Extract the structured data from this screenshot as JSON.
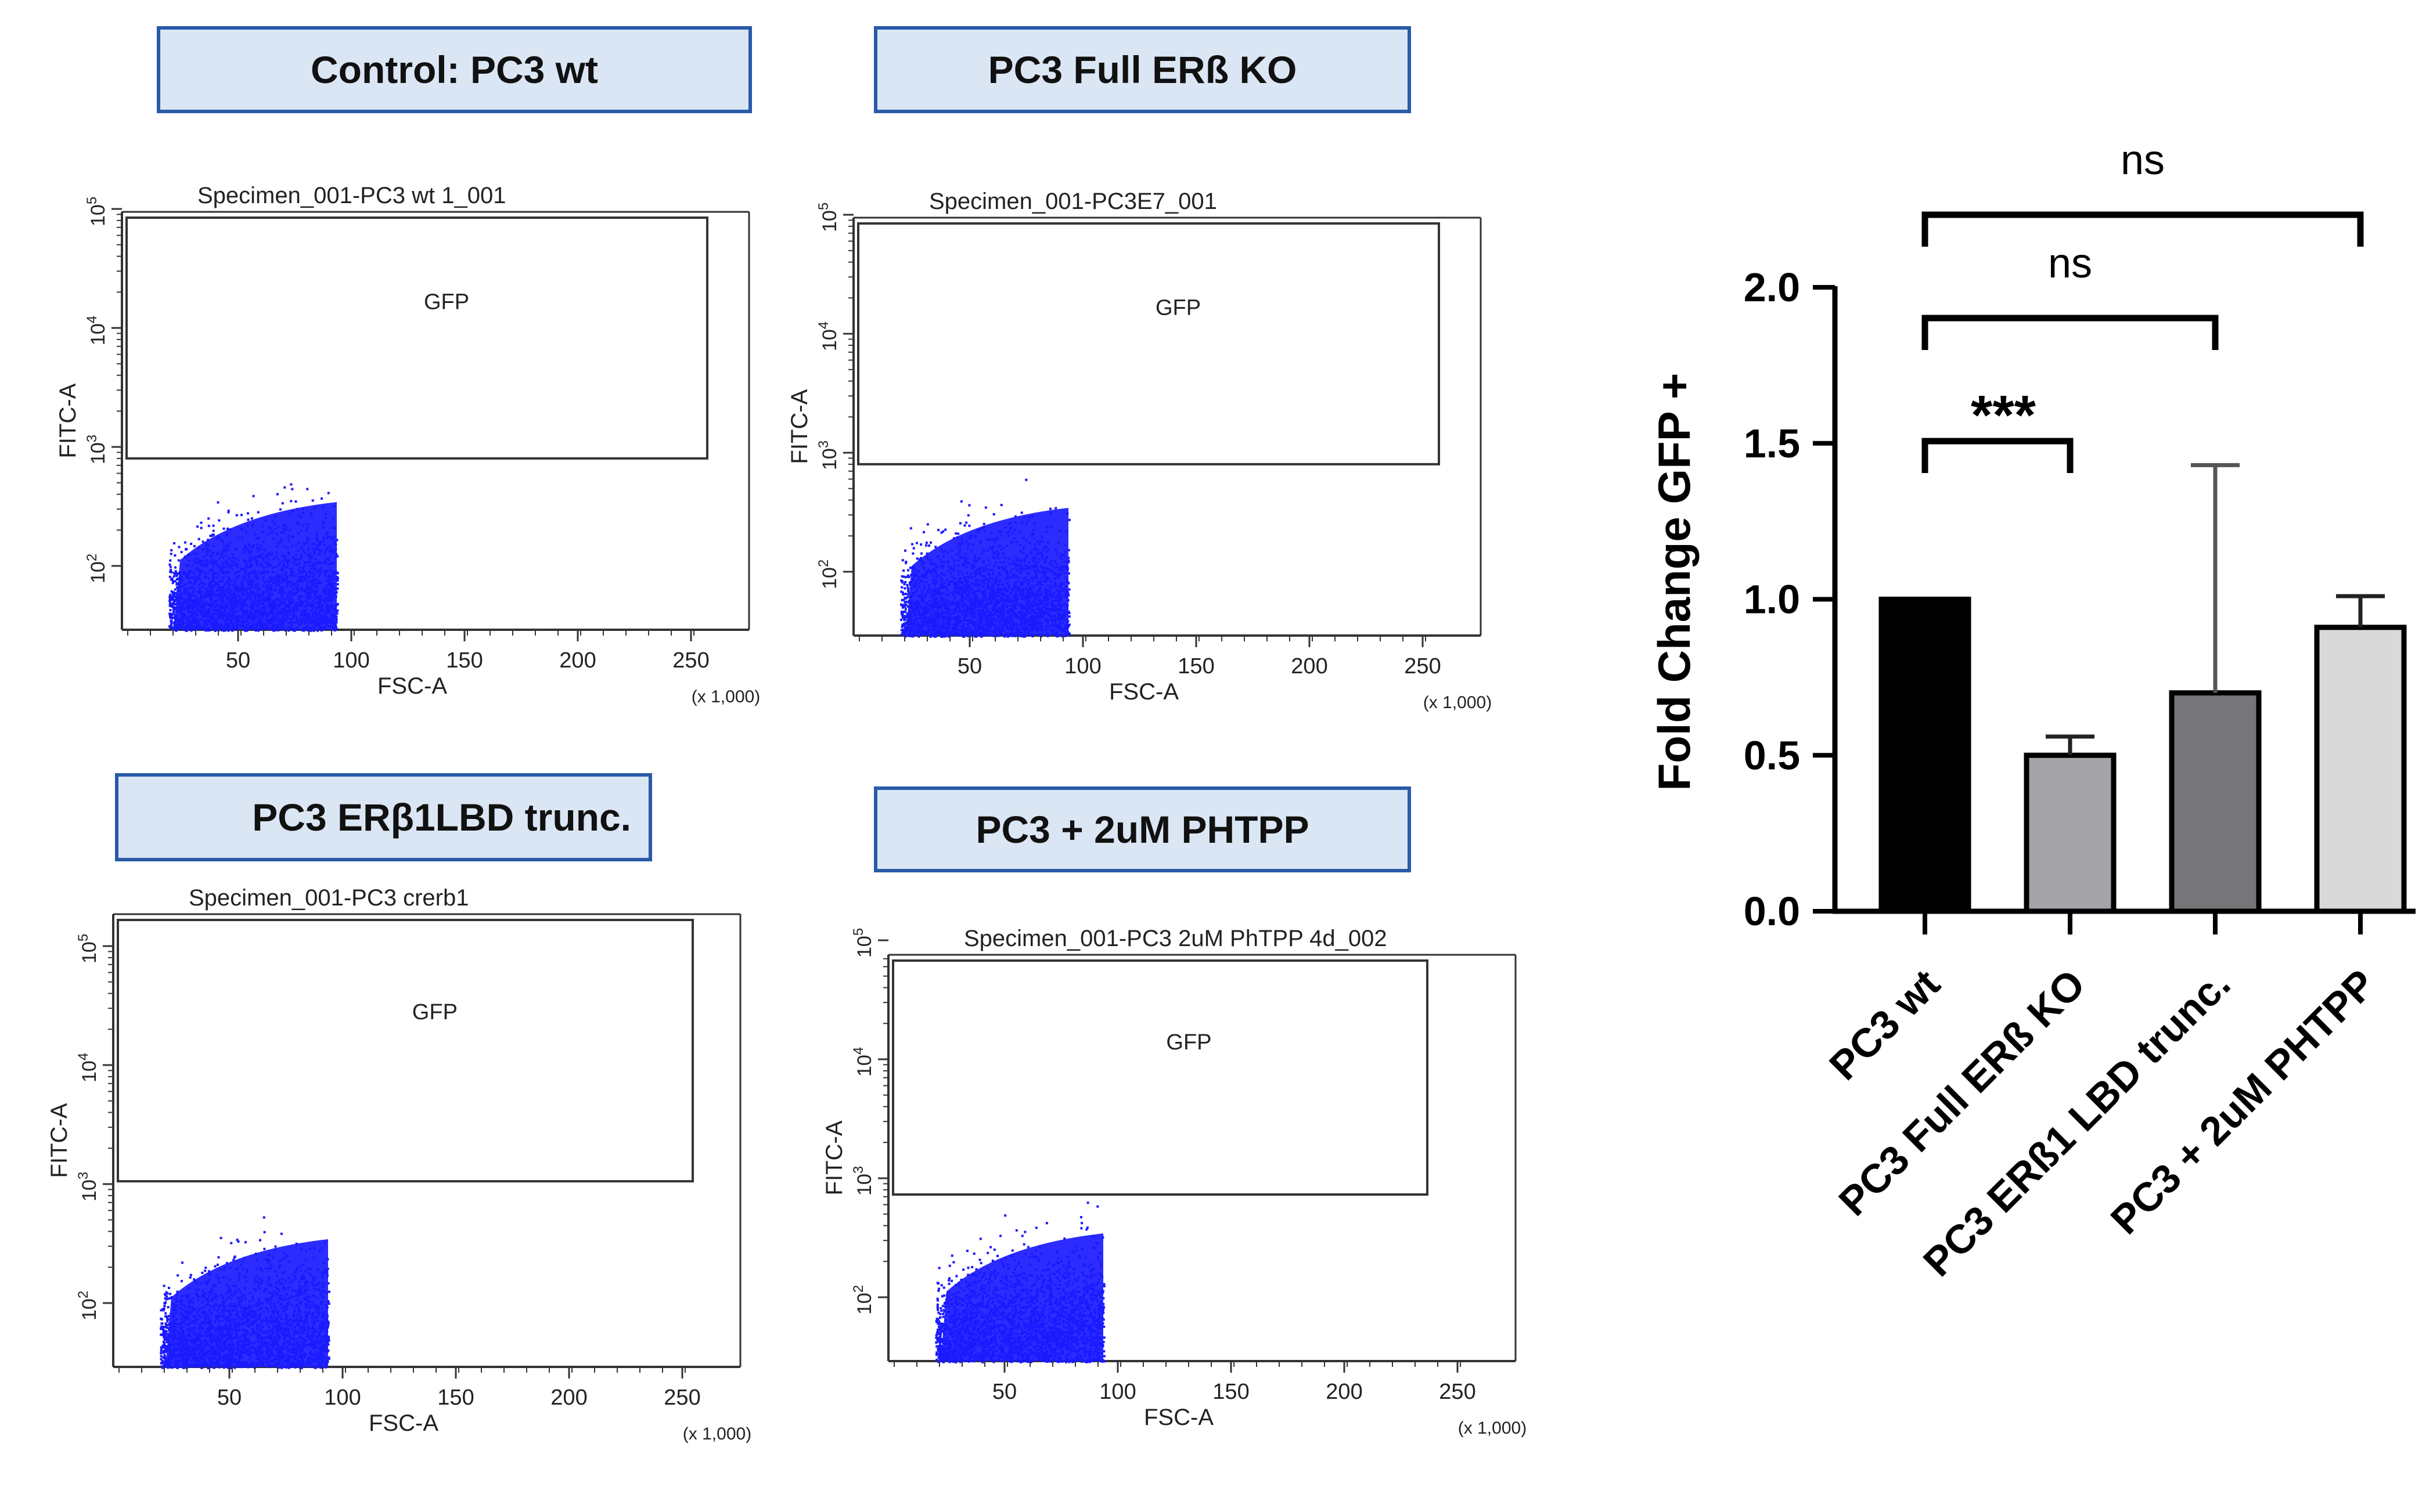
{
  "banners": {
    "wt": "Control:  PC3 wt",
    "ko": "PC3 Full ERß KO",
    "lbd": "PC3 ERβ1LBD trunc.",
    "phtpp": "PC3 + 2uM PHTPP"
  },
  "flow_plots": [
    {
      "id": "wt",
      "title": "Specimen_001-PC3 wt 1_001"
    },
    {
      "id": "ko",
      "title": "Specimen_001-PC3E7_001"
    },
    {
      "id": "lbd",
      "title": "Specimen_001-PC3 crerb1"
    },
    {
      "id": "phtpp",
      "title": "Specimen_001-PC3 2uM PhTPP 4d_002"
    }
  ],
  "flow_common": {
    "gate_label": "GFP",
    "xlabel": "FSC-A",
    "ylabel": "FITC-A",
    "x_ticks": [
      "50",
      "100",
      "150",
      "200",
      "250"
    ],
    "x_multiplier": "(x 1,000)",
    "y_ticks": [
      "10",
      "10",
      "10",
      "10"
    ],
    "y_exponents": [
      "2",
      "3",
      "4",
      "5"
    ],
    "dot_color": "#1a1aff"
  },
  "chart_data": {
    "type": "bar",
    "title": "",
    "xlabel": "",
    "ylabel": "Fold Change GFP  +",
    "categories": [
      "PC3 wt",
      "PC3 Full ERß KO",
      "PC3 ERß1 LBD trunc.",
      "PC3 + 2uM PHTPP"
    ],
    "values": [
      1.0,
      0.5,
      0.7,
      0.91
    ],
    "errors": [
      0.0,
      0.06,
      0.73,
      0.1
    ],
    "bar_colors": [
      "#000000",
      "#a3a3a8",
      "#767678",
      "#d9d9d9"
    ],
    "ylim": [
      0,
      2.0
    ],
    "yticks": [
      "0.0",
      "0.5",
      "1.0",
      "1.5",
      "2.0"
    ],
    "significance": [
      {
        "from": 0,
        "to": 1,
        "label": "***"
      },
      {
        "from": 0,
        "to": 2,
        "label": "ns"
      },
      {
        "from": 0,
        "to": 3,
        "label": "ns"
      }
    ]
  }
}
